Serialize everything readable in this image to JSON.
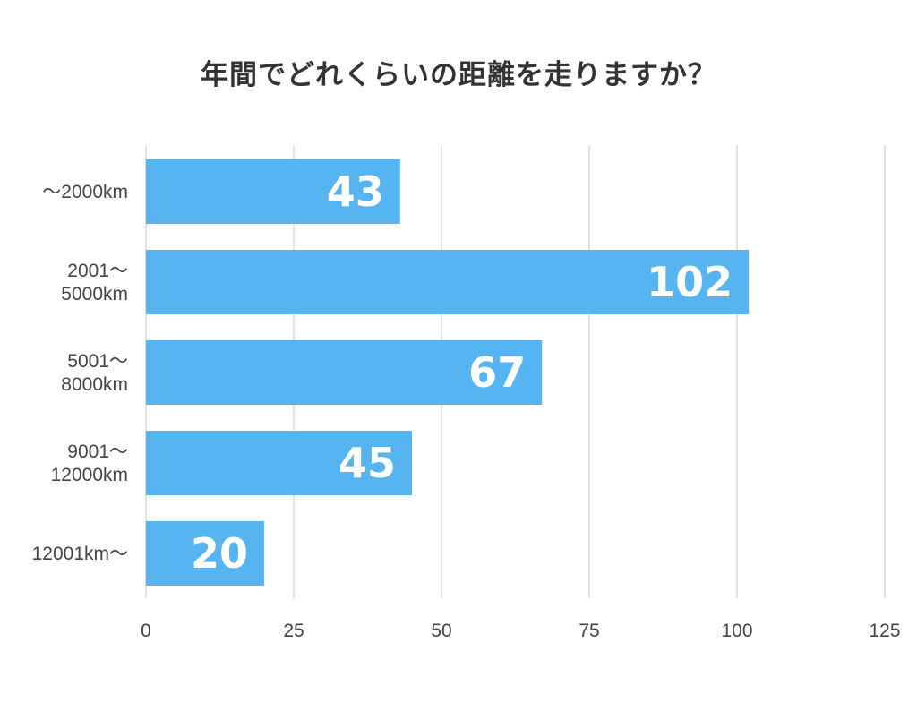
{
  "chart_data": {
    "type": "bar",
    "orientation": "horizontal",
    "title": "年間でどれくらいの距離を走りますか？",
    "categories": [
      [
        "〜2000km"
      ],
      [
        "2001〜",
        "5000km"
      ],
      [
        "5001〜",
        "8000km"
      ],
      [
        "9001〜",
        "12000km"
      ],
      [
        "12001km〜"
      ]
    ],
    "values": [
      43,
      102,
      67,
      45,
      20
    ],
    "xlim": [
      0,
      125
    ],
    "xticks": [
      0,
      25,
      50,
      75,
      100,
      125
    ],
    "grid": true,
    "bar_color": "#56b4f0",
    "grid_color": "#d9d9d9",
    "value_label_color": "#ffffff"
  }
}
